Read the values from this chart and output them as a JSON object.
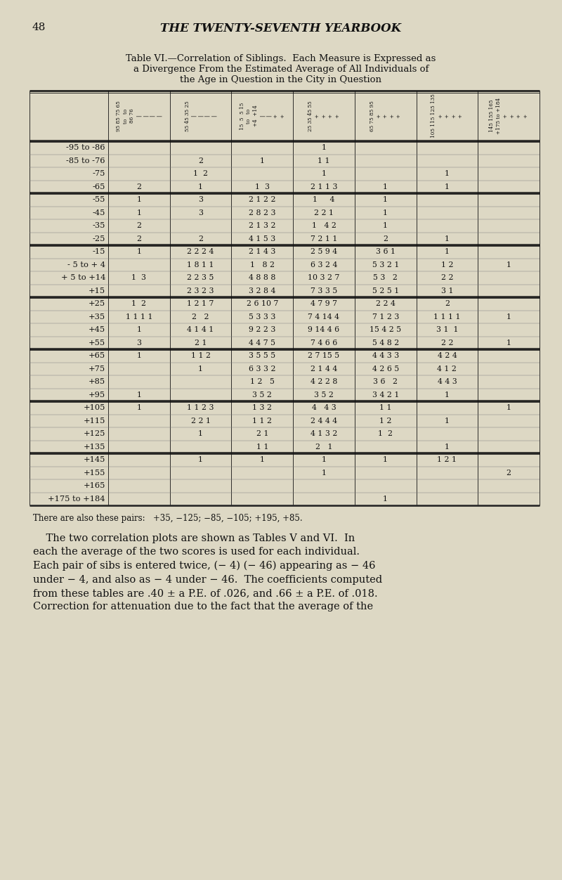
{
  "page_number": "48",
  "page_header": "THE TWENTY-SEVENTH YEARBOOK",
  "title_line1": "Table VI.—Correlation of Siblings.",
  "title_prefix": "  Each Measure is Expressed as",
  "title_line2": "a Divergence From the Estimated Average of All Individuals of",
  "title_line3": "the Age in Question in the City in Question",
  "background_color": "#ddd8c4",
  "text_color": "#111111",
  "row_labels": [
    "-95 to -86",
    "-85 to -76",
    "-75",
    "-65",
    "-55",
    "-45",
    "-35",
    "-25",
    "-15",
    "- 5 to + 4",
    "+ 5 to +14",
    "+15",
    "+25",
    "+35",
    "+45",
    "+55",
    "+65",
    "+75",
    "+85",
    "+95",
    "+105",
    "+115",
    "+125",
    "+135",
    "+145",
    "+155",
    "+165",
    "+175 to +184"
  ],
  "col_headers_top": [
    "95 86\nto\n|",
    "",
    "4  14\n+  +\nto to\n5   5\n1   1\n-   +",
    "",
    "",
    "",
    "184\nto\n+\n175\n+"
  ],
  "col_headers_nums": [
    "95 85 75 65",
    "55 45 35 25",
    "15  5  5 15",
    "25 35 45 55",
    "65 75 85 95",
    "105 115 125 135",
    "145 155 165 175"
  ],
  "col_headers_signs": [
    "- - - -",
    "- - - -",
    "- - + +",
    "+ + + +",
    "+ + + +",
    "+ + + +",
    "+ + + +"
  ],
  "footer": "There are also these pairs:   +35, −125; −85, −105; +195, +85.",
  "body_text": [
    "    The two correlation plots are shown as Tables V and VI.  In",
    "each the average of the two scores is used for each individual.",
    "Each pair of sibs is entered twice, (− 4) (− 46) appearing as − 46",
    "under − 4, and also as − 4 under − 46.  The coefficients computed",
    "from these tables are .40 ± a P.E. of .026, and .66 ± a P.E. of .018.",
    "Correction for attenuation due to the fact that the average of the"
  ]
}
